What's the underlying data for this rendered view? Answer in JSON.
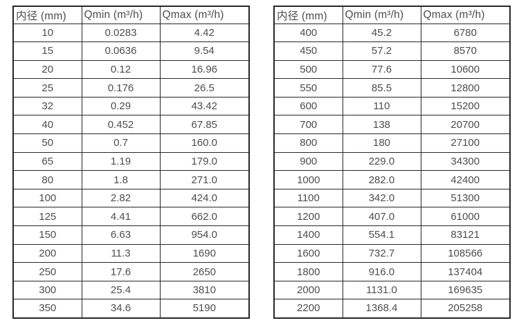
{
  "colors": {
    "border": "#262626",
    "text": "#4d4d4d",
    "background": "#ffffff"
  },
  "tables": [
    {
      "name": "flow-table-small-diameters",
      "headers": [
        "内径 (mm)",
        "Qmin (m³/h)",
        "Qmax (m³/h)"
      ],
      "rows": [
        [
          "10",
          "0.0283",
          "4.42"
        ],
        [
          "15",
          "0.0636",
          "9.54"
        ],
        [
          "20",
          "0.12",
          "16.96"
        ],
        [
          "25",
          "0.176",
          "26.5"
        ],
        [
          "32",
          "0.29",
          "43.42"
        ],
        [
          "40",
          "0.452",
          "67.85"
        ],
        [
          "50",
          "0.7",
          "160.0"
        ],
        [
          "65",
          "1.19",
          "179.0"
        ],
        [
          "80",
          "1.8",
          "271.0"
        ],
        [
          "100",
          "2.82",
          "424.0"
        ],
        [
          "125",
          "4.41",
          "662.0"
        ],
        [
          "150",
          "6.63",
          "954.0"
        ],
        [
          "200",
          "11.3",
          "1690"
        ],
        [
          "250",
          "17.6",
          "2650"
        ],
        [
          "300",
          "25.4",
          "3810"
        ],
        [
          "350",
          "34.6",
          "5190"
        ]
      ]
    },
    {
      "name": "flow-table-large-diameters",
      "headers": [
        "内径 (mm)",
        "Qmin (m³/h)",
        "Qmax (m³/h)"
      ],
      "rows": [
        [
          "400",
          "45.2",
          "6780"
        ],
        [
          "450",
          "57.2",
          "8570"
        ],
        [
          "500",
          "77.6",
          "10600"
        ],
        [
          "550",
          "85.5",
          "12800"
        ],
        [
          "600",
          "110",
          "15200"
        ],
        [
          "700",
          "138",
          "20700"
        ],
        [
          "800",
          "180",
          "27100"
        ],
        [
          "900",
          "229.0",
          "34300"
        ],
        [
          "1000",
          "282.0",
          "42400"
        ],
        [
          "1100",
          "342.0",
          "51300"
        ],
        [
          "1200",
          "407.0",
          "61000"
        ],
        [
          "1400",
          "554.1",
          "83121"
        ],
        [
          "1600",
          "732.7",
          "108566"
        ],
        [
          "1800",
          "916.0",
          "137404"
        ],
        [
          "2000",
          "1131.0",
          "169635"
        ],
        [
          "2200",
          "1368.4",
          "205258"
        ]
      ]
    }
  ]
}
